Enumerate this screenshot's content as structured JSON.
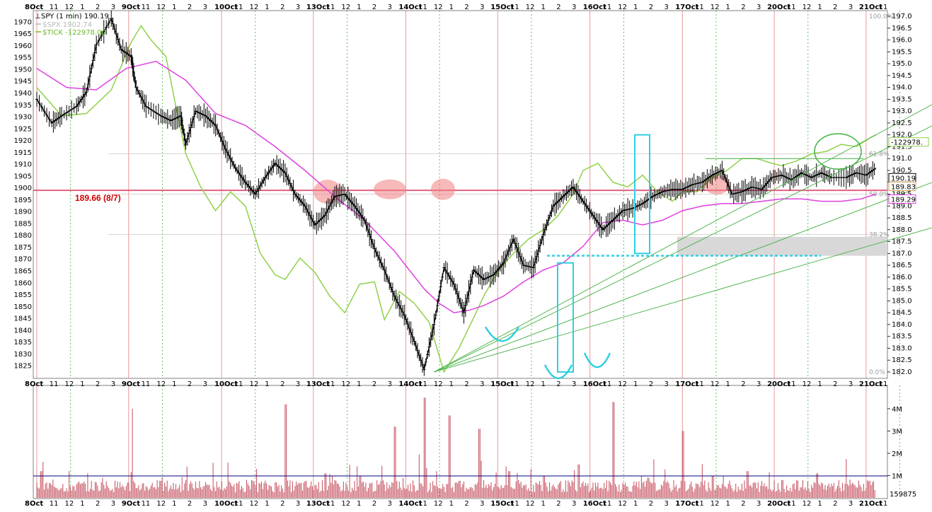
{
  "chart_data": {
    "type": "line",
    "legend": [
      {
        "label": "SPY (1 min) 190.19",
        "color": "#000000",
        "marker": "ohlc"
      },
      {
        "label": "$SPX 1902.74",
        "color": "#c8c8c8",
        "marker": "line"
      },
      {
        "label": "$TICK -122978.00",
        "color": "#8fd14a",
        "marker": "line"
      }
    ],
    "price_axis_left": {
      "ticks": [
        1825,
        1830,
        1835,
        1840,
        1845,
        1850,
        1855,
        1860,
        1865,
        1870,
        1875,
        1880,
        1885,
        1890,
        1895,
        1900,
        1905,
        1910,
        1915,
        1920,
        1925,
        1930,
        1935,
        1940,
        1945,
        1950,
        1955,
        1960,
        1965,
        1970
      ]
    },
    "price_axis_right": {
      "ticks": [
        "182.0",
        "182.5",
        "183.0",
        "183.5",
        "184.0",
        "184.5",
        "185.0",
        "185.5",
        "186.0",
        "186.5",
        "187.0",
        "187.5",
        "188.0",
        "188.5",
        "189.0",
        "189.5",
        "190.0",
        "190.5",
        "191.0",
        "191.5",
        "192.0",
        "192.5",
        "193.0",
        "193.5",
        "194.0",
        "194.5",
        "195.0",
        "195.5",
        "196.0",
        "196.5",
        "197.0"
      ],
      "ylim": [
        182.0,
        197.0
      ]
    },
    "volume_axis_right": {
      "ticks": [
        "1M",
        "2M",
        "3M",
        "4M"
      ],
      "last_volume": "159875"
    },
    "time_axis": {
      "labels": [
        "8Oct",
        "11",
        "12",
        "1",
        "2",
        "3",
        "9Oct",
        "11",
        "12",
        "1",
        "2",
        "3",
        "10Oct",
        "11",
        "12",
        "1",
        "2",
        "3",
        "13Oct",
        "11",
        "12",
        "1",
        "2",
        "3",
        "14Oct",
        "11",
        "12",
        "1",
        "2",
        "3",
        "15Oct",
        "11",
        "12",
        "1",
        "2",
        "3",
        "16Oct",
        "11",
        "12",
        "1",
        "2",
        "3",
        "17Oct",
        "11",
        "12",
        "1",
        "2",
        "3",
        "20Oct",
        "11",
        "12",
        "1",
        "2",
        "3",
        "21Oct",
        "11"
      ]
    },
    "price_tags": [
      {
        "value": "190.19",
        "color": "#000000",
        "price": 190.19
      },
      {
        "value": "189.83",
        "color": "#d8a050",
        "price": 189.83
      },
      {
        "value": "189.29",
        "color": "#e040e0",
        "price": 189.29
      },
      {
        "value": "-122978.",
        "color": "#8fd14a",
        "price": 191.7
      }
    ],
    "fib_labels": [
      {
        "text": "100.0%",
        "price": 197.0
      },
      {
        "text": "61.8%",
        "price": 191.2
      },
      {
        "text": "50.0%",
        "price": 189.5
      },
      {
        "text": "38.2%",
        "price": 187.8
      },
      {
        "text": "0.0%",
        "price": 182.0
      }
    ],
    "annotation": {
      "text": "189.66 (8/7)",
      "price": 189.66,
      "color": "#d00000"
    },
    "spy_series": {
      "x_day": [
        0,
        0.3,
        0.5,
        0.8,
        1.0,
        1.2,
        1.5,
        1.7,
        1.9,
        2.0,
        2.2,
        2.5,
        2.7,
        2.9,
        3.0,
        3.2,
        3.4,
        3.6,
        3.8,
        4.0,
        4.2,
        4.4,
        4.6,
        4.8,
        5.0,
        5.2,
        5.4,
        5.6,
        5.8,
        6.0,
        6.2,
        6.4,
        6.6,
        6.8,
        7.0,
        7.2,
        7.4,
        7.6,
        7.8,
        8.0,
        8.2,
        8.4,
        8.6,
        8.8,
        9.0,
        9.2,
        9.4,
        9.6,
        9.8,
        10.0,
        10.2,
        10.4,
        10.6,
        10.8,
        11.0,
        11.2,
        11.4,
        11.6,
        11.8,
        12.0,
        12.2,
        12.4,
        12.6,
        12.8,
        13.0,
        13.2,
        13.4,
        13.6,
        13.8,
        14.0,
        14.2,
        14.4,
        14.6,
        14.8,
        15.0,
        15.2,
        15.4,
        15.6,
        15.8,
        16.0,
        16.3,
        16.5,
        16.7,
        16.9
      ],
      "price": [
        193.5,
        192.5,
        192.8,
        193.2,
        193.8,
        195.8,
        196.9,
        195.6,
        195.3,
        194.0,
        193.2,
        192.8,
        192.6,
        192.8,
        191.6,
        193.0,
        192.8,
        192.4,
        191.4,
        190.6,
        190.0,
        189.5,
        190.2,
        190.8,
        190.4,
        189.5,
        189.0,
        188.2,
        188.6,
        189.4,
        189.5,
        189.0,
        188.4,
        187.2,
        186.3,
        185.2,
        184.4,
        183.3,
        182.1,
        184.0,
        186.4,
        185.7,
        184.5,
        186.3,
        185.9,
        186.1,
        186.6,
        187.6,
        186.5,
        186.4,
        187.8,
        189.0,
        189.4,
        189.8,
        189.2,
        188.6,
        188.0,
        188.4,
        188.8,
        188.9,
        189.1,
        189.4,
        189.6,
        189.7,
        189.7,
        189.9,
        190.0,
        190.3,
        190.5,
        189.5,
        189.6,
        189.8,
        189.7,
        190.2,
        190.3,
        190.1,
        190.4,
        190.2,
        190.4,
        190.2,
        190.2,
        190.4,
        190.3,
        190.6
      ]
    },
    "tick_series": {
      "x_day": [
        0,
        0.5,
        1.0,
        1.5,
        1.9,
        2.1,
        2.3,
        2.6,
        2.8,
        3.0,
        3.3,
        3.6,
        3.9,
        4.2,
        4.5,
        4.8,
        5.0,
        5.3,
        5.6,
        5.9,
        6.2,
        6.5,
        6.8,
        7.0,
        7.3,
        7.6,
        7.9,
        8.2,
        8.5,
        8.8,
        9.0,
        9.3,
        9.6,
        9.9,
        10.2,
        10.5,
        10.8,
        11.0,
        11.3,
        11.6,
        11.9,
        12.2,
        12.5,
        12.8,
        13.0,
        13.3,
        13.6,
        13.9,
        14.2,
        14.5,
        14.8,
        15.0,
        15.3,
        15.6,
        15.9,
        16.2,
        16.5,
        16.8,
        16.9
      ],
      "price": [
        194.0,
        192.8,
        192.9,
        193.9,
        195.9,
        196.6,
        196.0,
        195.3,
        193.2,
        191.2,
        189.8,
        188.8,
        189.6,
        189.0,
        187.0,
        186.1,
        185.9,
        186.8,
        186.2,
        185.2,
        184.5,
        185.7,
        185.8,
        184.2,
        185.4,
        184.9,
        184.1,
        182.0,
        183.0,
        184.3,
        185.2,
        186.3,
        187.0,
        187.6,
        188.0,
        188.6,
        189.5,
        190.5,
        190.8,
        190.0,
        189.8,
        190.3,
        189.6,
        189.2,
        189.6,
        189.6,
        190.2,
        190.5,
        191.0,
        191.0,
        190.8,
        190.7,
        190.9,
        191.2,
        191.3,
        191.6,
        191.5,
        191.9,
        192.0
      ]
    },
    "sma_series": {
      "x_day": [
        0,
        0.6,
        1.2,
        1.8,
        2.4,
        3.0,
        3.6,
        4.2,
        4.8,
        5.4,
        6.0,
        6.6,
        7.2,
        7.8,
        8.1,
        8.4,
        8.7,
        9.0,
        9.4,
        9.8,
        10.2,
        10.6,
        11.0,
        11.4,
        11.8,
        12.2,
        12.6,
        13.0,
        13.4,
        13.8,
        14.2,
        14.6,
        15.0,
        15.4,
        15.8,
        16.2,
        16.6,
        16.9
      ],
      "price": [
        194.8,
        194.0,
        193.9,
        194.8,
        195.1,
        194.3,
        192.9,
        192.4,
        191.5,
        190.5,
        189.4,
        188.4,
        187.1,
        185.5,
        184.9,
        184.5,
        184.6,
        184.8,
        185.2,
        185.8,
        186.3,
        186.6,
        187.3,
        188.3,
        188.4,
        188.2,
        188.4,
        188.8,
        189.0,
        189.1,
        189.1,
        189.2,
        189.3,
        189.3,
        189.2,
        189.2,
        189.3,
        189.5
      ]
    },
    "volume_series": {
      "x_day": [
        0.1,
        0.8,
        1.3,
        1.9,
        2.4,
        3.0,
        3.7,
        4.4,
        5.0,
        5.8,
        6.5,
        7.2,
        7.8,
        8.3,
        8.9,
        9.5,
        10.2,
        10.9,
        11.6,
        12.3,
        13.0,
        13.6,
        14.3,
        15.0,
        15.7,
        16.4
      ],
      "millions": [
        1.2,
        0.6,
        0.9,
        4.0,
        0.8,
        1.4,
        0.7,
        1.3,
        4.2,
        1.1,
        1.0,
        3.2,
        4.5,
        3.7,
        3.1,
        1.2,
        1.0,
        1.5,
        4.3,
        0.9,
        3.0,
        1.0,
        1.2,
        0.8,
        1.1,
        0.6
      ]
    }
  }
}
